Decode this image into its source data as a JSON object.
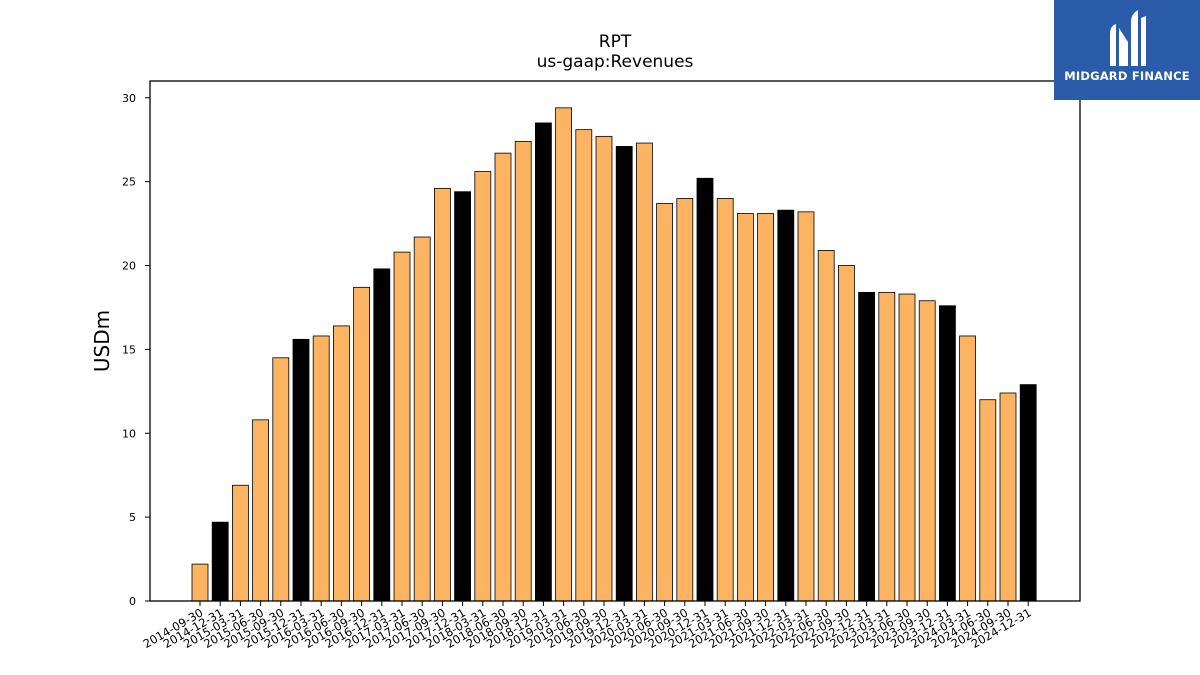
{
  "chart_data": {
    "type": "bar",
    "title": "RPT",
    "subtitle": "us-gaap:Revenues",
    "xlabel": "",
    "ylabel": "USDm",
    "ylim": [
      0,
      31
    ],
    "yticks": [
      0,
      5,
      10,
      15,
      20,
      25,
      30
    ],
    "grid": false,
    "colors": {
      "bar": "#fdb462",
      "highlight": "#000000",
      "edge": "#000000"
    },
    "highlight_rule": "year-end (12-31) bars drawn black",
    "categories": [
      "2014-09-30",
      "2014-12-31",
      "2015-03-31",
      "2015-06-30",
      "2015-09-30",
      "2015-12-31",
      "2016-03-31",
      "2016-06-30",
      "2016-09-30",
      "2016-12-31",
      "2017-03-31",
      "2017-06-30",
      "2017-09-30",
      "2017-12-31",
      "2018-03-31",
      "2018-06-30",
      "2018-09-30",
      "2018-12-31",
      "2019-03-31",
      "2019-06-30",
      "2019-09-30",
      "2019-12-31",
      "2020-03-31",
      "2020-06-30",
      "2020-09-30",
      "2020-12-31",
      "2021-03-31",
      "2021-06-30",
      "2021-09-30",
      "2021-12-31",
      "2022-03-31",
      "2022-06-30",
      "2022-09-30",
      "2022-12-31",
      "2023-03-31",
      "2023-06-30",
      "2023-09-30",
      "2023-12-31",
      "2024-03-31",
      "2024-06-30",
      "2024-09-30",
      "2024-12-31"
    ],
    "values": [
      2.2,
      4.7,
      6.9,
      10.8,
      14.5,
      15.6,
      15.8,
      16.4,
      18.7,
      19.8,
      20.8,
      21.7,
      24.6,
      24.4,
      25.6,
      26.7,
      27.4,
      28.5,
      29.4,
      28.1,
      27.7,
      27.1,
      27.3,
      23.7,
      24.0,
      25.2,
      24.0,
      23.1,
      23.1,
      23.3,
      23.2,
      20.9,
      20.0,
      18.4,
      18.4,
      18.3,
      17.9,
      17.6,
      15.8,
      12.0,
      12.4,
      12.9
    ]
  },
  "logo": {
    "text": "MIDGARD FINANCE"
  }
}
